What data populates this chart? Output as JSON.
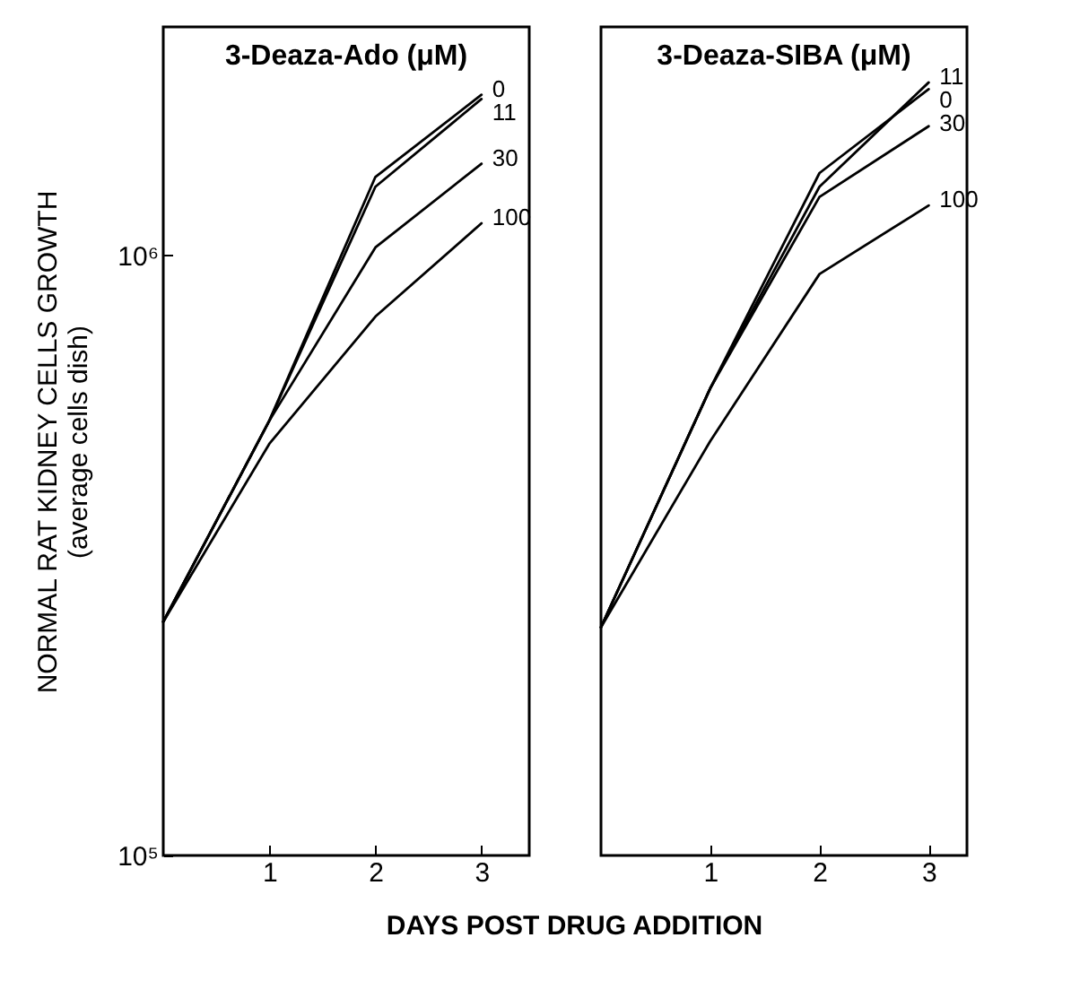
{
  "chart_data": [
    {
      "type": "line",
      "title": "3-Deaza-Ado (μM)",
      "xlabel": "DAYS POST DRUG ADDITION",
      "ylabel": "NORMAL RAT KIDNEY CELLS GROWTH\n(average cells dish)",
      "x": [
        0,
        1,
        2,
        3
      ],
      "xlim": [
        0,
        3.45
      ],
      "xticks": [
        1,
        2,
        3
      ],
      "ylim": [
        100000,
        2400000
      ],
      "yticks": [
        {
          "value": 100000,
          "label": "10⁵"
        },
        {
          "value": 1000000,
          "label": "10⁶"
        }
      ],
      "log": "y",
      "grid": false,
      "legend": false,
      "series": [
        {
          "name": "0",
          "color": "#000000",
          "values": [
            245000,
            530000,
            1350000,
            1850000
          ]
        },
        {
          "name": "11",
          "color": "#000000",
          "values": [
            245000,
            530000,
            1300000,
            1820000
          ]
        },
        {
          "name": "30",
          "color": "#000000",
          "values": [
            245000,
            530000,
            1030000,
            1420000
          ]
        },
        {
          "name": "100",
          "color": "#000000",
          "values": [
            245000,
            485000,
            790000,
            1130000
          ]
        }
      ]
    },
    {
      "type": "line",
      "title": "3-Deaza-SIBA (μM)",
      "x": [
        0,
        1,
        2,
        3
      ],
      "xlim": [
        0,
        3.35
      ],
      "xticks": [
        1,
        2,
        3
      ],
      "ylim": [
        100000,
        2400000
      ],
      "log": "y",
      "grid": false,
      "legend": false,
      "tick_labels": "x",
      "series": [
        {
          "name": "11",
          "color": "#000000",
          "values": [
            240000,
            600000,
            1300000,
            1940000
          ]
        },
        {
          "name": "0",
          "color": "#000000",
          "values": [
            240000,
            600000,
            1370000,
            1890000
          ]
        },
        {
          "name": "30",
          "color": "#000000",
          "values": [
            240000,
            600000,
            1250000,
            1640000
          ]
        },
        {
          "name": "100",
          "color": "#000000",
          "values": [
            240000,
            490000,
            930000,
            1210000
          ]
        }
      ]
    }
  ]
}
